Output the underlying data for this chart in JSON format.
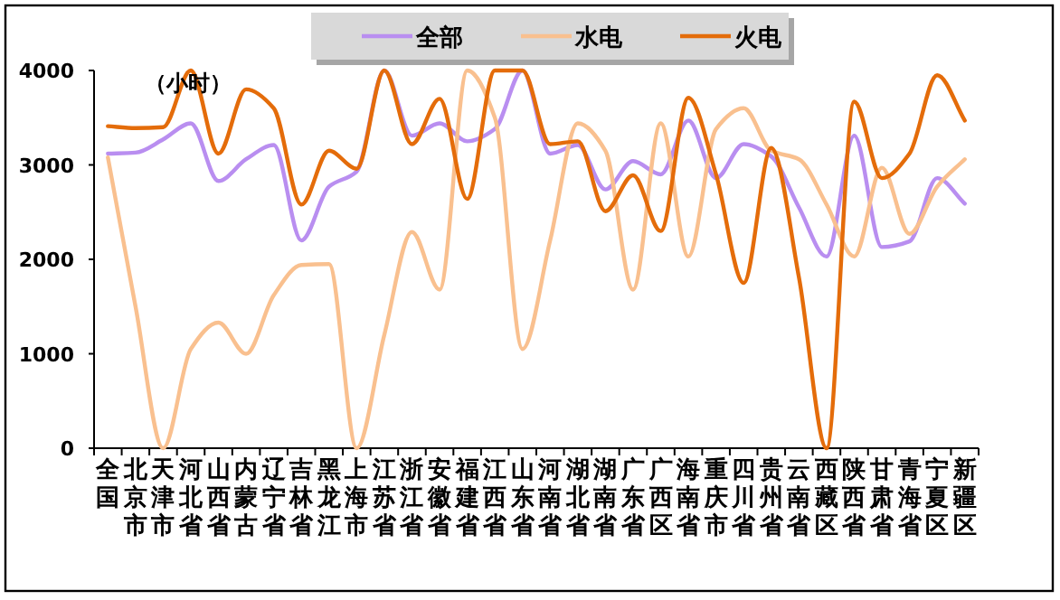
{
  "chart_data": {
    "type": "line",
    "categories": [
      "全国",
      "北京市",
      "天津市",
      "河北省",
      "山西省",
      "内蒙古",
      "辽宁省",
      "吉林省",
      "黑龙江",
      "上海市",
      "江苏省",
      "浙江省",
      "安徽省",
      "福建省",
      "江西省",
      "山东省",
      "河南省",
      "湖北省",
      "湖南省",
      "广东省",
      "广西区",
      "海南省",
      "重庆市",
      "四川省",
      "贵州省",
      "云南省",
      "西藏区",
      "陕西省",
      "甘肃省",
      "青海省",
      "宁夏区",
      "新疆区"
    ],
    "series": [
      {
        "name": "全部",
        "color": "#b98ef0",
        "values": [
          3120,
          3130,
          3270,
          3440,
          2830,
          3060,
          3210,
          2200,
          2770,
          2930,
          4000,
          3310,
          3440,
          3250,
          3380,
          4000,
          3120,
          3210,
          2740,
          3040,
          2900,
          3470,
          2860,
          3220,
          3090,
          2550,
          2030,
          3310,
          2130,
          2190,
          2860,
          2590
        ]
      },
      {
        "name": "水电",
        "color": "#f9c08f",
        "values": [
          3080,
          1500,
          0,
          1050,
          1330,
          1000,
          1620,
          1940,
          1950,
          0,
          1200,
          2290,
          1680,
          4000,
          3500,
          1050,
          2200,
          3440,
          3150,
          1680,
          3440,
          2030,
          3380,
          3600,
          3150,
          3060,
          2580,
          2030,
          2970,
          2270,
          2770,
          3060
        ]
      },
      {
        "name": "火电",
        "color": "#e46c0a",
        "values": [
          3410,
          3390,
          3400,
          4000,
          3120,
          3800,
          3600,
          2580,
          3150,
          2960,
          4000,
          3220,
          3700,
          2640,
          4000,
          4000,
          3220,
          3250,
          2510,
          2890,
          2300,
          3710,
          2900,
          1750,
          3180,
          1810,
          0,
          3670,
          2860,
          3120,
          3950,
          3470
        ]
      }
    ],
    "ylim": [
      0,
      4000
    ],
    "yticks": [
      0,
      1000,
      2000,
      3000,
      4000
    ],
    "annotations": [
      {
        "text": "（小时）"
      }
    ],
    "legend": "top",
    "grid": false,
    "marker": "none",
    "line_style": "solid"
  }
}
